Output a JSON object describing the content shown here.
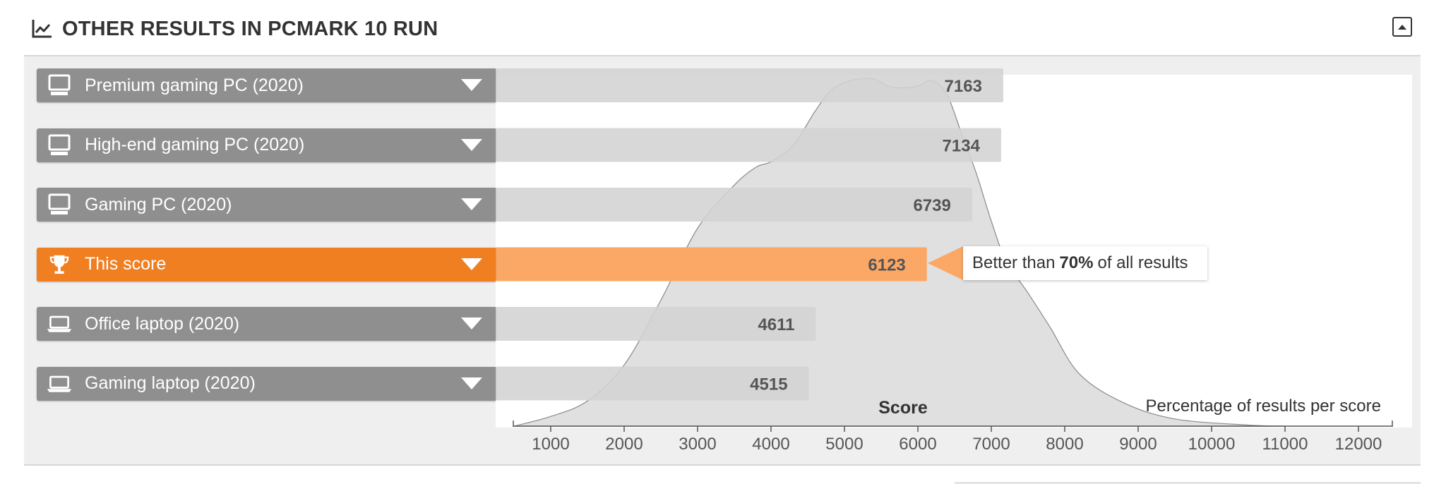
{
  "header": {
    "title": "OTHER RESULTS IN PCMARK 10 RUN",
    "icon": "line-chart-icon",
    "collapse_icon": "collapse-up-icon"
  },
  "colors": {
    "highlight": "#f07f21",
    "highlight_bar": "#fba866",
    "label_bg": "#8f8f8f",
    "bar_bg": "#d3d3d3",
    "distribution": "#dadada"
  },
  "callout": {
    "prefix": "Better than",
    "percent": "70%",
    "suffix": "of all results"
  },
  "chart_data": {
    "type": "bar",
    "orientation": "horizontal",
    "categories": [
      "Premium gaming PC (2020)",
      "High-end gaming PC (2020)",
      "Gaming PC (2020)",
      "This score",
      "Office laptop (2020)",
      "Gaming laptop (2020)"
    ],
    "values": [
      7163,
      7134,
      6739,
      6123,
      4611,
      4515
    ],
    "value_labels": [
      "7163",
      "7134",
      "6739",
      "6123",
      "4611",
      "4515"
    ],
    "category_icons": [
      "desktop-icon",
      "desktop-icon",
      "desktop-icon",
      "trophy-icon",
      "laptop-icon",
      "laptop-icon"
    ],
    "highlight_index": 3,
    "xlabel": "Score",
    "distribution_label": "Percentage of results per score",
    "xlim": [
      500,
      12500
    ],
    "xticks": [
      1000,
      2000,
      3000,
      4000,
      5000,
      6000,
      7000,
      8000,
      9000,
      10000,
      11000,
      12000
    ],
    "xtick_labels": [
      "1000",
      "2000",
      "3000",
      "4000",
      "5000",
      "6000",
      "7000",
      "8000",
      "9000",
      "10000",
      "11000",
      "12000"
    ],
    "distribution": {
      "x": [
        500,
        1000,
        1500,
        2000,
        2500,
        3000,
        3500,
        3800,
        4000,
        4300,
        4600,
        4800,
        5000,
        5200,
        5400,
        5600,
        5800,
        6000,
        6200,
        6400,
        6600,
        6800,
        7000,
        7200,
        7500,
        7800,
        8200,
        8800,
        9500,
        10500,
        11000
      ],
      "y": [
        0,
        2.7,
        7,
        17,
        35,
        55,
        67,
        72,
        73.5,
        78,
        87.5,
        93,
        95.5,
        96.5,
        96.5,
        94.5,
        94,
        94.5,
        96,
        92,
        81,
        70,
        57,
        46,
        37,
        27.5,
        14.5,
        6.5,
        2,
        0.3,
        0
      ]
    }
  }
}
